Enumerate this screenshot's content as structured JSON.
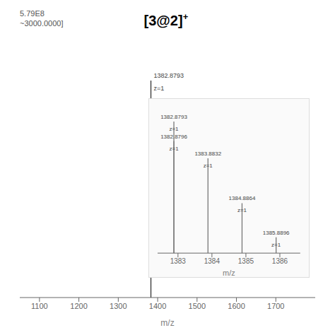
{
  "chart_data": [
    {
      "type": "stem",
      "title": "[3@2]",
      "x": [
        1382.8793
      ],
      "values": [
        1.0
      ],
      "color": "#333333",
      "xlim": [
        1050,
        1800
      ],
      "xticks": [
        1100,
        1200,
        1300,
        1400,
        1500,
        1600,
        1700
      ],
      "ylim": [
        0,
        1.15
      ],
      "xlabel": "m/z",
      "tick_labels": "x",
      "annotations": [
        {
          "text": "+",
          "superscript": true
        },
        {
          "text": "5.79E8"
        },
        {
          "text": "~3000.0000]"
        },
        {
          "text": "1382.8793",
          "x": 1382.8793,
          "y": 1.0
        },
        {
          "text": "z=1",
          "x": 1382.8793,
          "y": 1.0
        }
      ]
    },
    {
      "type": "stem",
      "x": [
        1382.8793,
        1382.8796,
        1383.8832,
        1384.8864,
        1385.8896
      ],
      "values": [
        1.0,
        0.85,
        0.72,
        0.38,
        0.12
      ],
      "color": "#777777",
      "xlim": [
        1382.4,
        1386.6
      ],
      "xticks": [
        1383,
        1384,
        1385,
        1386
      ],
      "ylim": [
        0,
        1.15
      ],
      "xlabel": "m/z",
      "tick_labels": "x",
      "annotations": [
        {
          "text": "1382.8793",
          "x": 1382.8793,
          "y": 1.0
        },
        {
          "text": "z=1",
          "x": 1382.8793,
          "y": 1.0
        },
        {
          "text": "1382.8796",
          "x": 1382.8796,
          "y": 0.85
        },
        {
          "text": "z=1",
          "x": 1382.8796,
          "y": 0.85
        },
        {
          "text": "1383.8832",
          "x": 1383.8832,
          "y": 0.72
        },
        {
          "text": "z=1",
          "x": 1383.8832,
          "y": 0.72
        },
        {
          "text": "1384.8864",
          "x": 1384.8864,
          "y": 0.38
        },
        {
          "text": "z=1",
          "x": 1384.8864,
          "y": 0.38
        },
        {
          "text": "1385.8896",
          "x": 1385.8896,
          "y": 0.12
        },
        {
          "text": "z=1",
          "x": 1385.8896,
          "y": 0.12
        }
      ]
    }
  ]
}
